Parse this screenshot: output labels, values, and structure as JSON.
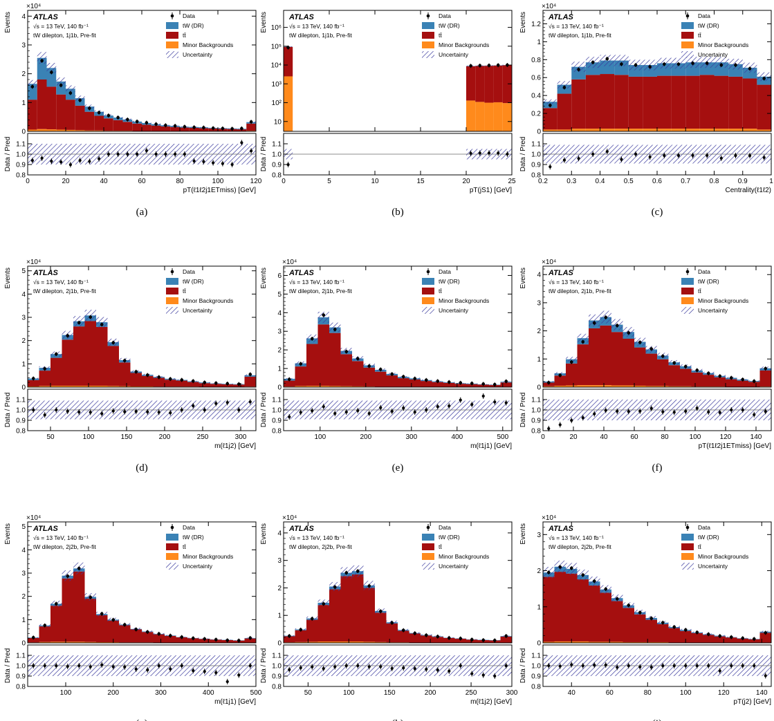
{
  "legend": {
    "data": "Data",
    "tw": "tW (DR)",
    "tt": "tt̄",
    "minor": "Minor Backgrounds",
    "unc": "Uncertainty"
  },
  "atlas_label": "ATLAS",
  "energy_label": "√s = 13 TeV, 140 fb⁻¹",
  "ratio_ylabel": "Data / Pred",
  "main_ylabel": "Events",
  "colors": {
    "tw": "#3a82b5",
    "tt": "#a50f0f",
    "minor": "#ff8a1c",
    "unc": "#3b3b9e"
  },
  "chart_data": [
    {
      "type": "bar",
      "stacked": true,
      "sublabel": "(a)",
      "region": "tW dilepton, 1j1b, Pre-fit",
      "xlabel": "pT(ℓ1ℓ2j1ETmiss) [GeV]",
      "multiplier": "×10⁴",
      "ylabel": "Events",
      "xlim": [
        0,
        120
      ],
      "ylim": [
        0,
        4.2
      ],
      "yscale": "linear",
      "xticks": [
        0,
        20,
        40,
        60,
        80,
        100,
        120
      ],
      "yticks": [
        0,
        1,
        2,
        3,
        4
      ],
      "edges": [
        0,
        5,
        10,
        15,
        20,
        25,
        30,
        35,
        40,
        45,
        50,
        55,
        60,
        65,
        70,
        75,
        80,
        85,
        90,
        95,
        100,
        105,
        110,
        115,
        120
      ],
      "minor": [
        0.06,
        0.08,
        0.07,
        0.06,
        0.05,
        0.04,
        0.03,
        0.03,
        0.02,
        0.02,
        0.02,
        0.01,
        0.01,
        0.01,
        0.01,
        0.01,
        0.01,
        0.01,
        0.01,
        0.01,
        0.01,
        0.01,
        0.01,
        0.02
      ],
      "tt": [
        1.04,
        1.72,
        1.48,
        1.22,
        1.05,
        0.85,
        0.65,
        0.51,
        0.43,
        0.37,
        0.31,
        0.26,
        0.22,
        0.19,
        0.16,
        0.14,
        0.12,
        0.11,
        0.1,
        0.09,
        0.08,
        0.07,
        0.06,
        0.25
      ],
      "tw": [
        0.55,
        0.75,
        0.65,
        0.45,
        0.38,
        0.26,
        0.18,
        0.14,
        0.1,
        0.09,
        0.08,
        0.07,
        0.06,
        0.05,
        0.04,
        0.04,
        0.03,
        0.03,
        0.03,
        0.02,
        0.02,
        0.02,
        0.02,
        0.05
      ],
      "data": [
        1.55,
        2.45,
        2.05,
        1.6,
        1.33,
        1.08,
        0.8,
        0.65,
        0.55,
        0.48,
        0.41,
        0.34,
        0.3,
        0.25,
        0.21,
        0.19,
        0.16,
        0.14,
        0.13,
        0.11,
        0.1,
        0.09,
        0.1,
        0.33
      ],
      "unc": 0.08,
      "ratio_unc": 0.1
    },
    {
      "type": "bar",
      "stacked": true,
      "sublabel": "(b)",
      "region": "tW dilepton, 1j1b, Pre-fit",
      "xlabel": "pT(jS1) [GeV]",
      "multiplier": "",
      "ylabel": "Events",
      "xlim": [
        0,
        25
      ],
      "ylim": [
        3,
        8000000
      ],
      "yscale": "log",
      "xticks": [
        0,
        5,
        10,
        15,
        20,
        25
      ],
      "yticks": [
        10,
        100,
        1000,
        10000,
        100000,
        1000000
      ],
      "ytick_labels": [
        "10",
        "10²",
        "10³",
        "10⁴",
        "10⁵",
        "10⁶"
      ],
      "edges": [
        0,
        1,
        21,
        22,
        23,
        24,
        25
      ],
      "minor": [
        2500,
        130,
        110,
        100,
        105,
        95
      ],
      "tt": [
        90000,
        8500,
        8800,
        9000,
        9300,
        9600
      ],
      "tw": [
        2000,
        300,
        300,
        300,
        300,
        300
      ],
      "data": [
        85000,
        9000,
        9300,
        9500,
        9800,
        10000
      ],
      "gap_edges": [
        1,
        20
      ],
      "unc": 0.05,
      "ratio_unc": 0.05
    },
    {
      "type": "bar",
      "stacked": true,
      "sublabel": "(c)",
      "region": "tW dilepton, 1j1b, Pre-fit",
      "xlabel": "Centrality(ℓ1ℓ2)",
      "multiplier": "×10⁴",
      "ylabel": "Events",
      "xlim": [
        0.2,
        1.0
      ],
      "ylim": [
        0,
        1.35
      ],
      "yscale": "linear",
      "xticks": [
        0.2,
        0.3,
        0.4,
        0.5,
        0.6,
        0.7,
        0.8,
        0.9,
        1.0
      ],
      "yticks": [
        0,
        0.2,
        0.4,
        0.6,
        0.8,
        1,
        1.2
      ],
      "edges": [
        0.2,
        0.25,
        0.3,
        0.35,
        0.4,
        0.45,
        0.5,
        0.55,
        0.6,
        0.65,
        0.7,
        0.75,
        0.8,
        0.85,
        0.9,
        0.95,
        1.0
      ],
      "minor": [
        0.02,
        0.02,
        0.03,
        0.03,
        0.03,
        0.03,
        0.03,
        0.03,
        0.03,
        0.03,
        0.03,
        0.03,
        0.03,
        0.03,
        0.03,
        0.02
      ],
      "tt": [
        0.24,
        0.4,
        0.55,
        0.6,
        0.61,
        0.6,
        0.58,
        0.58,
        0.59,
        0.59,
        0.59,
        0.6,
        0.59,
        0.58,
        0.56,
        0.5
      ],
      "tw": [
        0.07,
        0.1,
        0.14,
        0.14,
        0.15,
        0.16,
        0.13,
        0.13,
        0.14,
        0.14,
        0.15,
        0.14,
        0.15,
        0.14,
        0.12,
        0.09
      ],
      "data": [
        0.29,
        0.49,
        0.69,
        0.77,
        0.81,
        0.75,
        0.74,
        0.72,
        0.75,
        0.75,
        0.76,
        0.76,
        0.74,
        0.74,
        0.7,
        0.59
      ],
      "unc": 0.08,
      "ratio_unc": 0.09
    },
    {
      "type": "bar",
      "stacked": true,
      "sublabel": "(d)",
      "region": "tW dilepton, 2j1b, Pre-fit",
      "xlabel": "m(ℓ1j2) [GeV]",
      "multiplier": "×10⁴",
      "ylabel": "Events",
      "xlim": [
        20,
        320
      ],
      "ylim": [
        0,
        5.2
      ],
      "yscale": "linear",
      "xticks": [
        50,
        100,
        150,
        200,
        250,
        300
      ],
      "yticks": [
        0,
        1,
        2,
        3,
        4,
        5
      ],
      "edges": [
        20,
        35,
        50,
        65,
        80,
        95,
        110,
        125,
        140,
        155,
        170,
        185,
        200,
        215,
        230,
        245,
        260,
        275,
        290,
        305,
        320
      ],
      "minor": [
        0.03,
        0.05,
        0.06,
        0.06,
        0.06,
        0.06,
        0.06,
        0.05,
        0.04,
        0.03,
        0.03,
        0.02,
        0.02,
        0.02,
        0.02,
        0.01,
        0.01,
        0.01,
        0.01,
        0.02
      ],
      "tt": [
        0.27,
        0.66,
        1.2,
        1.98,
        2.55,
        2.78,
        2.53,
        1.72,
        1.02,
        0.58,
        0.45,
        0.38,
        0.3,
        0.26,
        0.2,
        0.16,
        0.13,
        0.11,
        0.1,
        0.43
      ],
      "tw": [
        0.07,
        0.12,
        0.16,
        0.2,
        0.22,
        0.24,
        0.2,
        0.16,
        0.1,
        0.06,
        0.05,
        0.04,
        0.04,
        0.03,
        0.03,
        0.03,
        0.02,
        0.02,
        0.02,
        0.06
      ],
      "data": [
        0.37,
        0.79,
        1.42,
        2.21,
        2.77,
        3.01,
        2.69,
        1.91,
        1.14,
        0.66,
        0.52,
        0.43,
        0.35,
        0.31,
        0.26,
        0.2,
        0.17,
        0.15,
        0.13,
        0.55
      ],
      "unc": 0.08,
      "ratio_unc": 0.09
    },
    {
      "type": "bar",
      "stacked": true,
      "sublabel": "(e)",
      "region": "tW dilepton, 2j1b, Pre-fit",
      "xlabel": "m(ℓ1j1) [GeV]",
      "multiplier": "×10⁴",
      "ylabel": "Events",
      "xlim": [
        20,
        520
      ],
      "ylim": [
        0,
        6.5
      ],
      "yscale": "linear",
      "xticks": [
        100,
        200,
        300,
        400,
        500
      ],
      "yticks": [
        0,
        1,
        2,
        3,
        4,
        5,
        6
      ],
      "edges": [
        20,
        45,
        70,
        95,
        120,
        145,
        170,
        195,
        220,
        245,
        270,
        295,
        320,
        345,
        370,
        395,
        420,
        445,
        470,
        495,
        520
      ],
      "minor": [
        0.03,
        0.06,
        0.07,
        0.07,
        0.06,
        0.05,
        0.04,
        0.03,
        0.02,
        0.02,
        0.02,
        0.02,
        0.01,
        0.01,
        0.01,
        0.01,
        0.01,
        0.01,
        0.01,
        0.02
      ],
      "tt": [
        0.32,
        1.05,
        2.25,
        3.3,
        2.85,
        1.72,
        1.36,
        1.02,
        0.81,
        0.61,
        0.46,
        0.39,
        0.32,
        0.26,
        0.22,
        0.17,
        0.15,
        0.12,
        0.1,
        0.23
      ],
      "tw": [
        0.1,
        0.17,
        0.3,
        0.38,
        0.3,
        0.18,
        0.14,
        0.12,
        0.1,
        0.08,
        0.07,
        0.06,
        0.05,
        0.04,
        0.03,
        0.03,
        0.03,
        0.02,
        0.02,
        0.04
      ],
      "data": [
        0.42,
        1.25,
        2.6,
        3.87,
        3.1,
        1.91,
        1.53,
        1.13,
        0.95,
        0.7,
        0.56,
        0.46,
        0.38,
        0.32,
        0.27,
        0.23,
        0.2,
        0.17,
        0.14,
        0.31
      ],
      "unc": 0.08,
      "ratio_unc": 0.09
    },
    {
      "type": "bar",
      "stacked": true,
      "sublabel": "(f)",
      "region": "tW dilepton, 2j1b, Pre-fit",
      "xlabel": "pT(ℓ1ℓ2j1ETmiss) [GeV]",
      "multiplier": "×10⁴",
      "ylabel": "Events",
      "xlim": [
        0,
        150
      ],
      "ylim": [
        0,
        4.3
      ],
      "yscale": "linear",
      "xticks": [
        0,
        20,
        40,
        60,
        80,
        100,
        120,
        140
      ],
      "yticks": [
        0,
        1,
        2,
        3,
        4
      ],
      "edges": [
        0,
        7.5,
        15,
        22.5,
        30,
        37.5,
        45,
        52.5,
        60,
        67.5,
        75,
        82.5,
        90,
        97.5,
        105,
        112.5,
        120,
        127.5,
        135,
        142.5,
        150
      ],
      "minor": [
        0.03,
        0.05,
        0.06,
        0.07,
        0.07,
        0.07,
        0.06,
        0.06,
        0.05,
        0.04,
        0.04,
        0.03,
        0.03,
        0.02,
        0.02,
        0.02,
        0.01,
        0.01,
        0.01,
        0.02
      ],
      "tt": [
        0.13,
        0.36,
        0.78,
        1.45,
        2.02,
        2.12,
        1.9,
        1.66,
        1.36,
        1.15,
        0.95,
        0.75,
        0.62,
        0.5,
        0.42,
        0.33,
        0.27,
        0.22,
        0.18,
        0.57
      ],
      "tw": [
        0.04,
        0.08,
        0.15,
        0.22,
        0.28,
        0.3,
        0.26,
        0.24,
        0.2,
        0.15,
        0.13,
        0.1,
        0.09,
        0.07,
        0.06,
        0.05,
        0.05,
        0.04,
        0.03,
        0.08
      ],
      "data": [
        0.16,
        0.42,
        0.89,
        1.61,
        2.28,
        2.48,
        2.19,
        1.93,
        1.59,
        1.36,
        1.1,
        0.86,
        0.73,
        0.6,
        0.49,
        0.39,
        0.33,
        0.27,
        0.21,
        0.66
      ],
      "unc": 0.09,
      "ratio_unc": 0.1
    },
    {
      "type": "bar",
      "stacked": true,
      "sublabel": "(g)",
      "region": "tW dilepton, 2j2b, Pre-fit",
      "xlabel": "m(ℓ1j1) [GeV]",
      "multiplier": "×10⁴",
      "ylabel": "Events",
      "xlim": [
        20,
        500
      ],
      "ylim": [
        0,
        5.2
      ],
      "yscale": "linear",
      "xticks": [
        100,
        200,
        300,
        400,
        500
      ],
      "yticks": [
        0,
        1,
        2,
        3,
        4,
        5
      ],
      "edges": [
        20,
        44,
        68,
        92,
        116,
        140,
        164,
        188,
        212,
        236,
        260,
        284,
        308,
        332,
        356,
        380,
        404,
        428,
        452,
        476,
        500
      ],
      "minor": [
        0.02,
        0.04,
        0.05,
        0.05,
        0.05,
        0.04,
        0.03,
        0.03,
        0.02,
        0.02,
        0.02,
        0.01,
        0.01,
        0.01,
        0.01,
        0.01,
        0.01,
        0.01,
        0.01,
        0.01
      ],
      "tt": [
        0.19,
        0.67,
        1.55,
        2.72,
        3.02,
        1.86,
        1.16,
        0.93,
        0.74,
        0.56,
        0.45,
        0.36,
        0.29,
        0.23,
        0.19,
        0.16,
        0.13,
        0.11,
        0.09,
        0.18
      ],
      "tw": [
        0.02,
        0.04,
        0.08,
        0.12,
        0.13,
        0.08,
        0.05,
        0.04,
        0.03,
        0.02,
        0.02,
        0.02,
        0.02,
        0.01,
        0.01,
        0.01,
        0.01,
        0.01,
        0.01,
        0.02
      ],
      "data": [
        0.23,
        0.75,
        1.68,
        2.87,
        3.2,
        1.96,
        1.25,
        0.99,
        0.78,
        0.58,
        0.47,
        0.39,
        0.31,
        0.25,
        0.2,
        0.17,
        0.14,
        0.11,
        0.1,
        0.21
      ],
      "unc": 0.08,
      "ratio_unc": 0.1
    },
    {
      "type": "bar",
      "stacked": true,
      "sublabel": "(h)",
      "region": "tW dilepton, 2j2b, Pre-fit",
      "xlabel": "m(ℓ1j2) [GeV]",
      "multiplier": "×10⁴",
      "ylabel": "Events",
      "xlim": [
        20,
        300
      ],
      "ylim": [
        0,
        4.4
      ],
      "yscale": "linear",
      "xticks": [
        50,
        100,
        150,
        200,
        250,
        300
      ],
      "yticks": [
        0,
        1,
        2,
        3,
        4
      ],
      "edges": [
        20,
        34,
        48,
        62,
        76,
        90,
        104,
        118,
        132,
        146,
        160,
        174,
        188,
        202,
        216,
        230,
        244,
        258,
        272,
        286,
        300
      ],
      "minor": [
        0.02,
        0.03,
        0.04,
        0.05,
        0.05,
        0.05,
        0.05,
        0.04,
        0.03,
        0.02,
        0.02,
        0.01,
        0.01,
        0.01,
        0.01,
        0.01,
        0.01,
        0.01,
        0.01,
        0.01
      ],
      "tt": [
        0.22,
        0.43,
        0.8,
        1.33,
        1.9,
        2.38,
        2.44,
        1.96,
        1.07,
        0.69,
        0.42,
        0.33,
        0.26,
        0.21,
        0.17,
        0.14,
        0.11,
        0.09,
        0.08,
        0.22
      ],
      "tw": [
        0.02,
        0.03,
        0.05,
        0.08,
        0.1,
        0.12,
        0.12,
        0.09,
        0.06,
        0.04,
        0.03,
        0.02,
        0.02,
        0.02,
        0.01,
        0.01,
        0.01,
        0.01,
        0.01,
        0.02
      ],
      "data": [
        0.25,
        0.48,
        0.88,
        1.42,
        2.03,
        2.55,
        2.61,
        2.07,
        1.15,
        0.73,
        0.46,
        0.35,
        0.28,
        0.23,
        0.18,
        0.16,
        0.12,
        0.1,
        0.09,
        0.25
      ],
      "unc": 0.08,
      "ratio_unc": 0.1
    },
    {
      "type": "bar",
      "stacked": true,
      "sublabel": "(i)",
      "region": "tW dilepton, 2j2b, Pre-fit",
      "xlabel": "pT(j2) [GeV]",
      "multiplier": "×10⁴",
      "ylabel": "Events",
      "xlim": [
        25,
        145
      ],
      "ylim": [
        0,
        3.35
      ],
      "yscale": "linear",
      "xticks": [
        40,
        60,
        80,
        100,
        120,
        140
      ],
      "yticks": [
        0,
        1,
        2,
        3
      ],
      "edges": [
        25,
        31,
        37,
        43,
        49,
        55,
        61,
        67,
        73,
        79,
        85,
        91,
        97,
        103,
        109,
        115,
        121,
        127,
        133,
        139,
        145
      ],
      "minor": [
        0.03,
        0.04,
        0.04,
        0.04,
        0.03,
        0.03,
        0.03,
        0.02,
        0.02,
        0.02,
        0.02,
        0.01,
        0.01,
        0.01,
        0.01,
        0.01,
        0.01,
        0.01,
        0.01,
        0.01
      ],
      "tt": [
        1.8,
        1.93,
        1.88,
        1.72,
        1.56,
        1.36,
        1.13,
        0.95,
        0.77,
        0.62,
        0.5,
        0.4,
        0.32,
        0.26,
        0.21,
        0.17,
        0.14,
        0.11,
        0.09,
        0.27
      ],
      "tw": [
        0.12,
        0.14,
        0.13,
        0.12,
        0.11,
        0.09,
        0.08,
        0.07,
        0.06,
        0.05,
        0.04,
        0.03,
        0.03,
        0.02,
        0.02,
        0.02,
        0.01,
        0.01,
        0.01,
        0.03
      ],
      "data": [
        1.95,
        2.1,
        2.07,
        1.88,
        1.71,
        1.49,
        1.22,
        1.04,
        0.84,
        0.68,
        0.56,
        0.44,
        0.36,
        0.29,
        0.24,
        0.19,
        0.16,
        0.13,
        0.11,
        0.28
      ],
      "unc": 0.08,
      "ratio_unc": 0.1
    }
  ]
}
